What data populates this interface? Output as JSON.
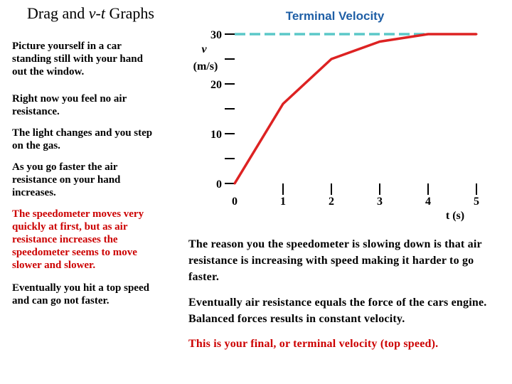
{
  "slide": {
    "title": "Drag and v-t Graphs",
    "title_parts": [
      "Drag and ",
      "v-t",
      " Graphs"
    ]
  },
  "left_text": [
    "Picture yourself in a car standing still with your hand out the window.",
    "Right now you feel no air resistance.",
    "The light changes and you step on the gas.",
    "As you go faster the air resistance on your hand increases.",
    "The speedometer moves very quickly at first, but as air resistance increases the speedometer seems to move slower and slower.",
    "Eventually you hit a top speed and can go not faster."
  ],
  "right_text": [
    "The reason you the speedometer is slowing down is that air resistance is increasing with speed making it harder to go faster.",
    "Eventually air resistance equals the force of the cars engine. Balanced forces results in constant velocity.",
    "This is your final, or terminal velocity (top speed)."
  ],
  "colors": {
    "text": "#000000",
    "accent_red": "#cc0000",
    "chart_title": "#1f5fa6",
    "curve": "#dd2222",
    "terminal_line": "#5bc8c8"
  },
  "chart_data": {
    "type": "line",
    "title": "Terminal Velocity",
    "xlabel": "t (s)",
    "ylabel_var": "v",
    "ylabel_unit": "(m/s)",
    "xlim": [
      0,
      5
    ],
    "ylim": [
      0,
      30
    ],
    "x_ticks": [
      0,
      1,
      2,
      3,
      4,
      5
    ],
    "x_tick_labels": [
      "0",
      "1",
      "2",
      "3",
      "4",
      "5"
    ],
    "y_ticks": [
      0,
      5,
      10,
      15,
      20,
      25,
      30
    ],
    "y_tick_labels": [
      "0",
      "",
      "10",
      "",
      "20",
      "",
      "30"
    ],
    "series": [
      {
        "values_x": [
          0,
          1,
          2,
          3,
          4,
          5
        ],
        "values_y": [
          0,
          16,
          25,
          28.5,
          30,
          30
        ]
      }
    ],
    "reference_line": {
      "y": 30,
      "x_from": 0,
      "x_to": 4,
      "style": "dashed"
    }
  }
}
